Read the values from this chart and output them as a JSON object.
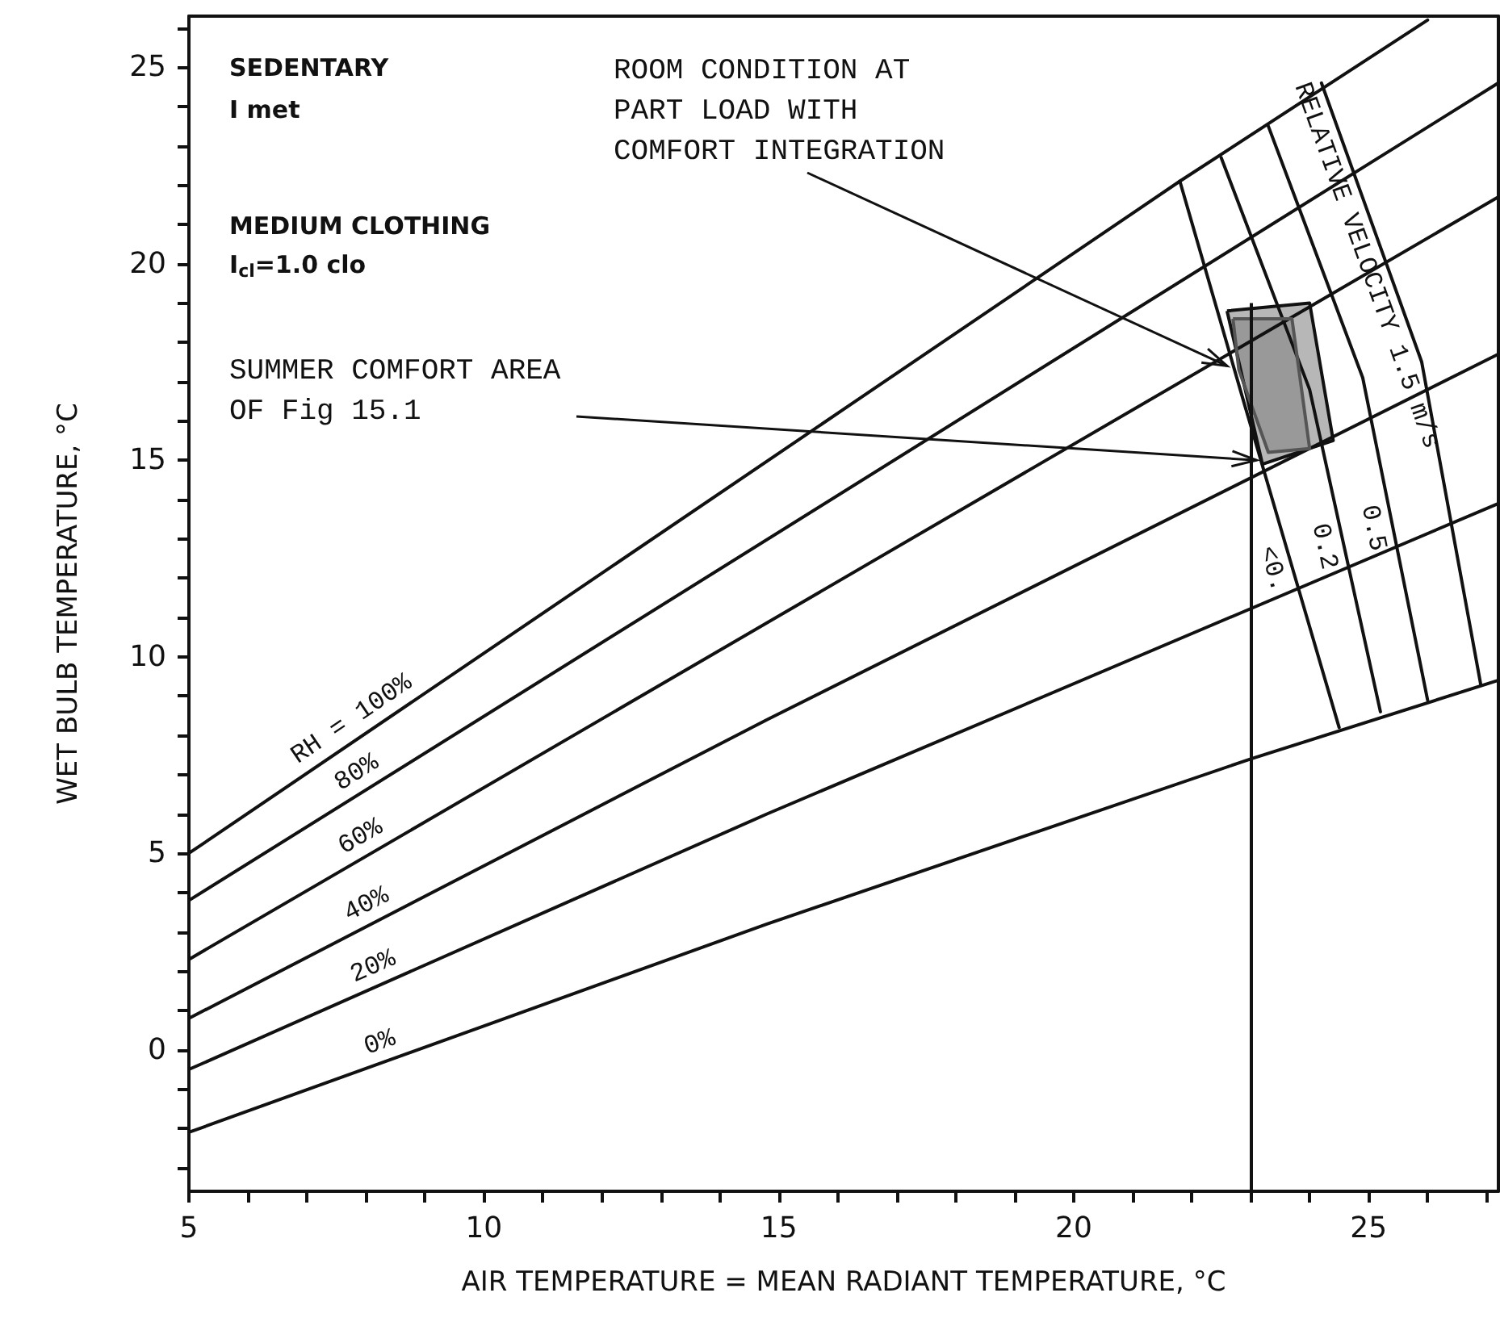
{
  "chart_data": {
    "type": "line",
    "xlabel": "AIR TEMPERATURE = MEAN RADIANT TEMPERATURE, °C",
    "ylabel": "WET BULB TEMPERATURE, °C",
    "xlim": [
      5,
      27.2
    ],
    "ylim": [
      -3.6,
      26.3
    ],
    "xticks": [
      5,
      {
        "value": 6,
        "label": null
      },
      {
        "value": 7,
        "label": null
      },
      {
        "value": 8,
        "label": null
      },
      {
        "value": 9,
        "label": null
      },
      10,
      {
        "value": 11,
        "label": null
      },
      {
        "value": 12,
        "label": null
      },
      {
        "value": 13,
        "label": null
      },
      {
        "value": 14,
        "label": null
      },
      15,
      {
        "value": 16,
        "label": null
      },
      {
        "value": 17,
        "label": null
      },
      {
        "value": 18,
        "label": null
      },
      {
        "value": 19,
        "label": null
      },
      20,
      {
        "value": 21,
        "label": null
      },
      {
        "value": 22,
        "label": null
      },
      {
        "value": 23,
        "label": null
      },
      {
        "value": 24,
        "label": null
      },
      25,
      {
        "value": 26,
        "label": null
      },
      {
        "value": 27,
        "label": null
      }
    ],
    "yticks": [
      {
        "value": -3,
        "label": null
      },
      {
        "value": -2,
        "label": null
      },
      {
        "value": -1,
        "label": null
      },
      0,
      {
        "value": 1,
        "label": null
      },
      {
        "value": 2,
        "label": null
      },
      {
        "value": 3,
        "label": null
      },
      {
        "value": 4,
        "label": null
      },
      5,
      {
        "value": 6,
        "label": null
      },
      {
        "value": 7,
        "label": null
      },
      {
        "value": 8,
        "label": null
      },
      {
        "value": 9,
        "label": null
      },
      10,
      {
        "value": 11,
        "label": null
      },
      {
        "value": 12,
        "label": null
      },
      {
        "value": 13,
        "label": null
      },
      {
        "value": 14,
        "label": null
      },
      15,
      {
        "value": 16,
        "label": null
      },
      {
        "value": 17,
        "label": null
      },
      {
        "value": 18,
        "label": null
      },
      {
        "value": 19,
        "label": null
      },
      20,
      {
        "value": 21,
        "label": null
      },
      {
        "value": 22,
        "label": null
      },
      {
        "value": 23,
        "label": null
      },
      {
        "value": 24,
        "label": null
      },
      25,
      {
        "value": 26,
        "label": null
      }
    ],
    "grid": false,
    "marker": "none",
    "ref_lines": [
      {
        "axis": "x",
        "value": 23
      }
    ],
    "line_style": "solid",
    "series": [
      {
        "name": "RH = 100%",
        "color": "#111111",
        "x": [
          5,
          21.8,
          26.0
        ],
        "values": [
          5.0,
          22.1,
          26.2
        ]
      },
      {
        "name": "80%",
        "color": "#111111",
        "x": [
          5,
          27.2
        ],
        "values": [
          3.8,
          24.6
        ]
      },
      {
        "name": "60%",
        "color": "#111111",
        "x": [
          5,
          27.2
        ],
        "values": [
          2.3,
          21.7
        ]
      },
      {
        "name": "40%",
        "color": "#111111",
        "x": [
          5,
          14.8,
          27.2
        ],
        "values": [
          0.8,
          8.4,
          17.7
        ]
      },
      {
        "name": "20%",
        "color": "#111111",
        "x": [
          5,
          14.8,
          27.2
        ],
        "values": [
          -0.5,
          6.0,
          13.9
        ]
      },
      {
        "name": "0%",
        "color": "#111111",
        "x": [
          5,
          14.8,
          23,
          27.2
        ],
        "values": [
          -2.1,
          3.2,
          7.4,
          9.4
        ]
      },
      {
        "name": "<0.",
        "color": "#111111",
        "x": [
          21.8,
          22.9,
          24.5
        ],
        "values": [
          22.1,
          16.4,
          8.2
        ]
      },
      {
        "name": "0.2",
        "color": "#111111",
        "x": [
          22.5,
          24.0,
          25.2
        ],
        "values": [
          22.7,
          16.8,
          8.6
        ]
      },
      {
        "name": "0.5",
        "color": "#111111",
        "x": [
          23.3,
          24.9,
          26.0
        ],
        "values": [
          23.5,
          17.1,
          8.9
        ]
      },
      {
        "name": "RELATIVE VELOCITY 1.5 m/s",
        "color": "#111111",
        "x": [
          24.2,
          25.9,
          26.9
        ],
        "values": [
          24.6,
          17.5,
          9.3
        ]
      },
      {
        "type": "area",
        "color": "#111111",
        "x": [
          22.6,
          24.0,
          24.4,
          23.2,
          22.6
        ],
        "values": [
          18.8,
          19.0,
          15.5,
          14.9,
          18.8
        ]
      },
      {
        "type": "area",
        "color": "#555555",
        "x": [
          22.7,
          23.7,
          24.0,
          23.3,
          22.8,
          22.7
        ],
        "values": [
          18.6,
          18.6,
          15.3,
          15.2,
          17.3,
          18.6
        ]
      }
    ],
    "annotations": [
      "SEDENTARY",
      "I met",
      "MEDIUM CLOTHING",
      "I$_{cl}$=1.0 clo",
      {
        "text": "ROOM CONDITION AT\nPART LOAD WITH\nCOMFORT INTEGRATION",
        "x": 22.6,
        "y": 17.4
      },
      "SUMMER COMFORT AREA\nOF Fig 15.1"
    ]
  }
}
